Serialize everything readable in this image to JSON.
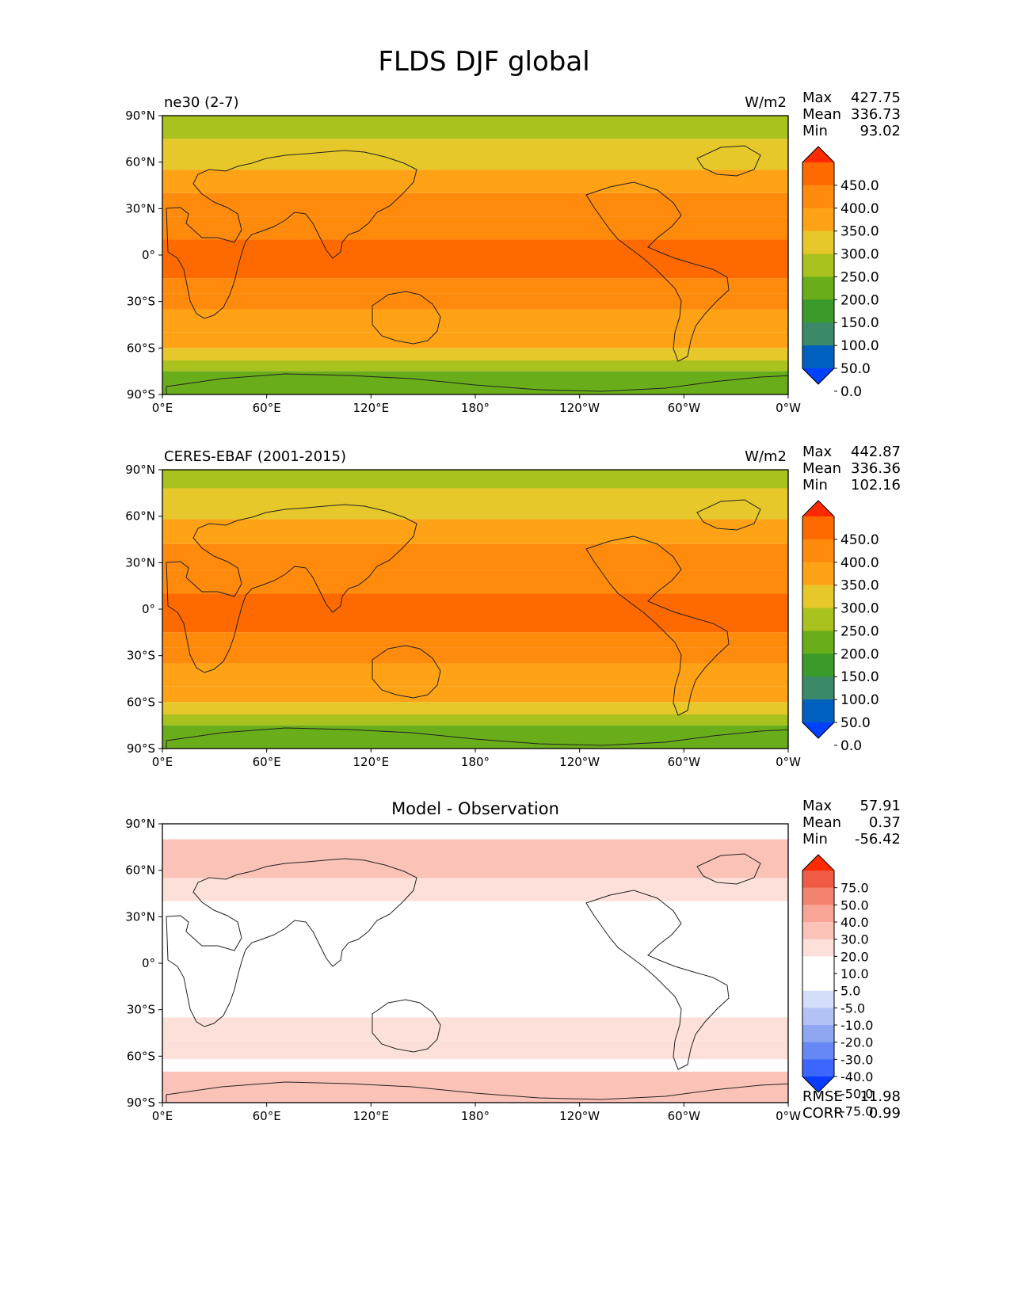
{
  "figure": {
    "title": "FLDS DJF global"
  },
  "colors": {
    "seq": [
      "#0040ff",
      "#0060c0",
      "#3a8a6a",
      "#3a9a2a",
      "#6aad1a",
      "#aac21e",
      "#e6c82a",
      "#ffa216",
      "#ff8a0c",
      "#ff6a00",
      "#ff2a00"
    ],
    "diff": [
      "#0a3cff",
      "#3d66ff",
      "#6688f5",
      "#8fa6f0",
      "#b3c3f5",
      "#d5def8",
      "#ffffff",
      "#ffffff",
      "#fde0da",
      "#fbc3b8",
      "#f8a595",
      "#f48470",
      "#ef5b45",
      "#ff2a00"
    ]
  },
  "chart_data": [
    {
      "type": "heatmap",
      "left_title": "ne30 (2-7)",
      "units": "W/m2",
      "stats": [
        {
          "label": "Max",
          "value": "427.75"
        },
        {
          "label": "Mean",
          "value": "336.73"
        },
        {
          "label": "Min",
          "value": "93.02"
        }
      ],
      "colorbar": {
        "labels": [
          "450.0",
          "400.0",
          "350.0",
          "300.0",
          "250.0",
          "200.0",
          "150.0",
          "100.0",
          "50.0",
          "0.0"
        ],
        "extend": "both",
        "colormap": "seq"
      },
      "x_ticks": [
        "0°E",
        "60°E",
        "120°E",
        "180°",
        "120°W",
        "60°W",
        "0°W"
      ],
      "y_ticks": [
        "90°N",
        "60°N",
        "30°N",
        "0°",
        "30°S",
        "60°S",
        "90°S"
      ],
      "xlim": [
        0,
        360
      ],
      "ylim": [
        -90,
        90
      ],
      "lat_bands": [
        {
          "lat_from": 90,
          "lat_to": 75,
          "value": 220
        },
        {
          "lat_from": 75,
          "lat_to": 55,
          "value": 265
        },
        {
          "lat_from": 55,
          "lat_to": 40,
          "value": 315
        },
        {
          "lat_from": 40,
          "lat_to": 25,
          "value": 355
        },
        {
          "lat_from": 25,
          "lat_to": 10,
          "value": 385
        },
        {
          "lat_from": 10,
          "lat_to": -15,
          "value": 410
        },
        {
          "lat_from": -15,
          "lat_to": -25,
          "value": 395
        },
        {
          "lat_from": -25,
          "lat_to": -35,
          "value": 370
        },
        {
          "lat_from": -35,
          "lat_to": -50,
          "value": 340
        },
        {
          "lat_from": -50,
          "lat_to": -60,
          "value": 310
        },
        {
          "lat_from": -60,
          "lat_to": -68,
          "value": 280
        },
        {
          "lat_from": -68,
          "lat_to": -75,
          "value": 230
        },
        {
          "lat_from": -75,
          "lat_to": -90,
          "value": 170
        }
      ]
    },
    {
      "type": "heatmap",
      "left_title": "CERES-EBAF (2001-2015)",
      "units": "W/m2",
      "stats": [
        {
          "label": "Max",
          "value": "442.87"
        },
        {
          "label": "Mean",
          "value": "336.36"
        },
        {
          "label": "Min",
          "value": "102.16"
        }
      ],
      "colorbar": {
        "labels": [
          "450.0",
          "400.0",
          "350.0",
          "300.0",
          "250.0",
          "200.0",
          "150.0",
          "100.0",
          "50.0",
          "0.0"
        ],
        "extend": "both",
        "colormap": "seq"
      },
      "x_ticks": [
        "0°E",
        "60°E",
        "120°E",
        "180°",
        "120°W",
        "60°W",
        "0°W"
      ],
      "y_ticks": [
        "90°N",
        "60°N",
        "30°N",
        "0°",
        "30°S",
        "60°S",
        "90°S"
      ],
      "xlim": [
        0,
        360
      ],
      "ylim": [
        -90,
        90
      ],
      "lat_bands": [
        {
          "lat_from": 90,
          "lat_to": 78,
          "value": 200
        },
        {
          "lat_from": 78,
          "lat_to": 58,
          "value": 255
        },
        {
          "lat_from": 58,
          "lat_to": 42,
          "value": 310
        },
        {
          "lat_from": 42,
          "lat_to": 25,
          "value": 355
        },
        {
          "lat_from": 25,
          "lat_to": 10,
          "value": 385
        },
        {
          "lat_from": 10,
          "lat_to": -15,
          "value": 410
        },
        {
          "lat_from": -15,
          "lat_to": -25,
          "value": 395
        },
        {
          "lat_from": -25,
          "lat_to": -35,
          "value": 370
        },
        {
          "lat_from": -35,
          "lat_to": -50,
          "value": 340
        },
        {
          "lat_from": -50,
          "lat_to": -60,
          "value": 310
        },
        {
          "lat_from": -60,
          "lat_to": -68,
          "value": 270
        },
        {
          "lat_from": -68,
          "lat_to": -75,
          "value": 220
        },
        {
          "lat_from": -75,
          "lat_to": -90,
          "value": 190
        }
      ]
    },
    {
      "type": "heatmap",
      "center_title": "Model - Observation",
      "stats": [
        {
          "label": "Max",
          "value": "57.91"
        },
        {
          "label": "Mean",
          "value": "0.37"
        },
        {
          "label": "Min",
          "value": "-56.42"
        }
      ],
      "extra_stats": [
        {
          "label": "RMSE",
          "value": "11.98"
        },
        {
          "label": "CORR",
          "value": "0.99"
        }
      ],
      "colorbar": {
        "labels": [
          "75.0",
          "50.0",
          "40.0",
          "30.0",
          "20.0",
          "10.0",
          "5.0",
          "-5.0",
          "-10.0",
          "-20.0",
          "-30.0",
          "-40.0",
          "-50.0",
          "-75.0"
        ],
        "extend": "both",
        "colormap": "diff"
      },
      "x_ticks": [
        "0°E",
        "60°E",
        "120°E",
        "180°",
        "120°W",
        "60°W",
        "0°W"
      ],
      "y_ticks": [
        "90°N",
        "60°N",
        "30°N",
        "0°",
        "30°S",
        "60°S",
        "90°S"
      ],
      "xlim": [
        0,
        360
      ],
      "ylim": [
        -90,
        90
      ],
      "lat_bands": [
        {
          "lat_from": 90,
          "lat_to": 80,
          "value": 2
        },
        {
          "lat_from": 80,
          "lat_to": 55,
          "value": 18
        },
        {
          "lat_from": 55,
          "lat_to": 40,
          "value": 8
        },
        {
          "lat_from": 40,
          "lat_to": 20,
          "value": -6
        },
        {
          "lat_from": 20,
          "lat_to": -20,
          "value": 0
        },
        {
          "lat_from": -20,
          "lat_to": -35,
          "value": -7
        },
        {
          "lat_from": -35,
          "lat_to": -50,
          "value": 6
        },
        {
          "lat_from": -50,
          "lat_to": -62,
          "value": 8
        },
        {
          "lat_from": -62,
          "lat_to": -70,
          "value": -8
        },
        {
          "lat_from": -70,
          "lat_to": -90,
          "value": 12
        }
      ]
    }
  ]
}
